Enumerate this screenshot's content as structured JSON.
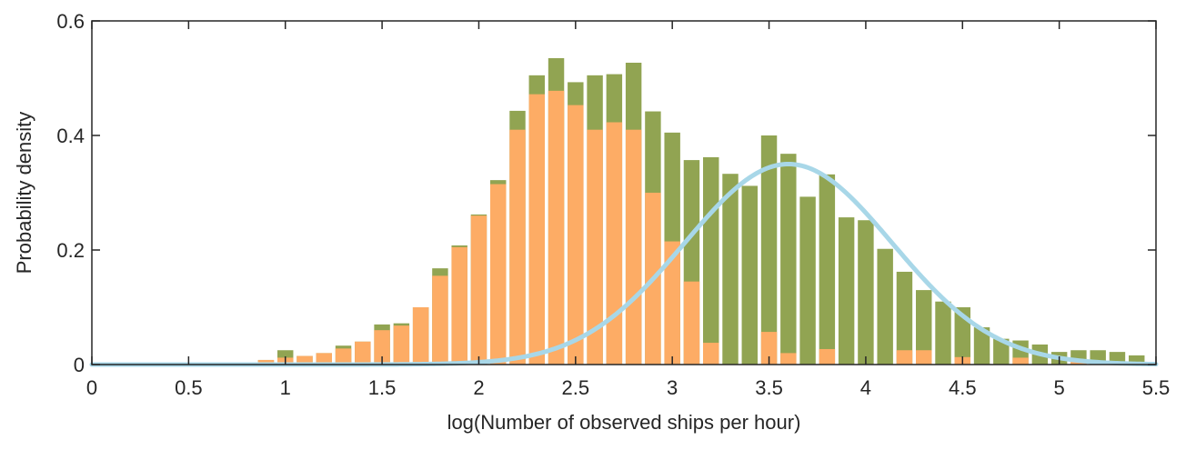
{
  "chart_data": {
    "type": "bar",
    "title": "",
    "xlabel": "log(Number of observed ships per hour)",
    "ylabel": "Probability density",
    "xlim": [
      0,
      5.5
    ],
    "ylim": [
      0,
      0.6
    ],
    "xticks": [
      "0",
      "0.5",
      "1",
      "1.5",
      "2",
      "2.5",
      "3",
      "3.5",
      "4",
      "4.5",
      "5",
      "5.5"
    ],
    "yticks": [
      "0",
      "0.2",
      "0.4",
      "0.6"
    ],
    "grid": false,
    "bin_width": 0.1,
    "bin_centers": [
      0.9,
      1.0,
      1.1,
      1.2,
      1.3,
      1.4,
      1.5,
      1.6,
      1.7,
      1.8,
      1.9,
      2.0,
      2.1,
      2.2,
      2.3,
      2.4,
      2.5,
      2.6,
      2.7,
      2.8,
      2.9,
      3.0,
      3.1,
      3.2,
      3.3,
      3.4,
      3.5,
      3.6,
      3.7,
      3.8,
      3.9,
      4.0,
      4.1,
      4.2,
      4.3,
      4.4,
      4.5,
      4.6,
      4.7,
      4.8,
      4.9,
      5.0,
      5.1,
      5.2,
      5.3,
      5.4
    ],
    "series": [
      {
        "color": "#91a452",
        "values": [
          0.008,
          0.025,
          0.015,
          0.02,
          0.033,
          0.04,
          0.07,
          0.072,
          0.1,
          0.168,
          0.208,
          0.262,
          0.322,
          0.443,
          0.505,
          0.535,
          0.493,
          0.505,
          0.507,
          0.527,
          0.442,
          0.405,
          0.357,
          0.362,
          0.333,
          0.312,
          0.4,
          0.368,
          0.293,
          0.332,
          0.257,
          0.252,
          0.202,
          0.162,
          0.13,
          0.11,
          0.1,
          0.065,
          0.045,
          0.042,
          0.035,
          0.022,
          0.025,
          0.025,
          0.022,
          0.016
        ]
      },
      {
        "color": "#fdac65",
        "values": [
          0.008,
          0.012,
          0.015,
          0.02,
          0.028,
          0.04,
          0.06,
          0.068,
          0.1,
          0.155,
          0.205,
          0.26,
          0.315,
          0.41,
          0.472,
          0.478,
          0.453,
          0.41,
          0.423,
          0.41,
          0.3,
          0.215,
          0.145,
          0.038,
          0.0,
          0.0,
          0.057,
          0.02,
          0.0,
          0.027,
          0.0,
          0.0,
          0.0,
          0.025,
          0.025,
          0.0,
          0.013,
          0.0,
          0.0,
          0.012,
          0.0,
          0.0,
          0.007,
          0.0,
          0.0,
          0.0
        ]
      },
      {
        "type": "line",
        "color": "#a8d7e8",
        "distribution": "normal",
        "mean": 3.6,
        "std": 1.15,
        "peak": 0.35
      }
    ]
  }
}
